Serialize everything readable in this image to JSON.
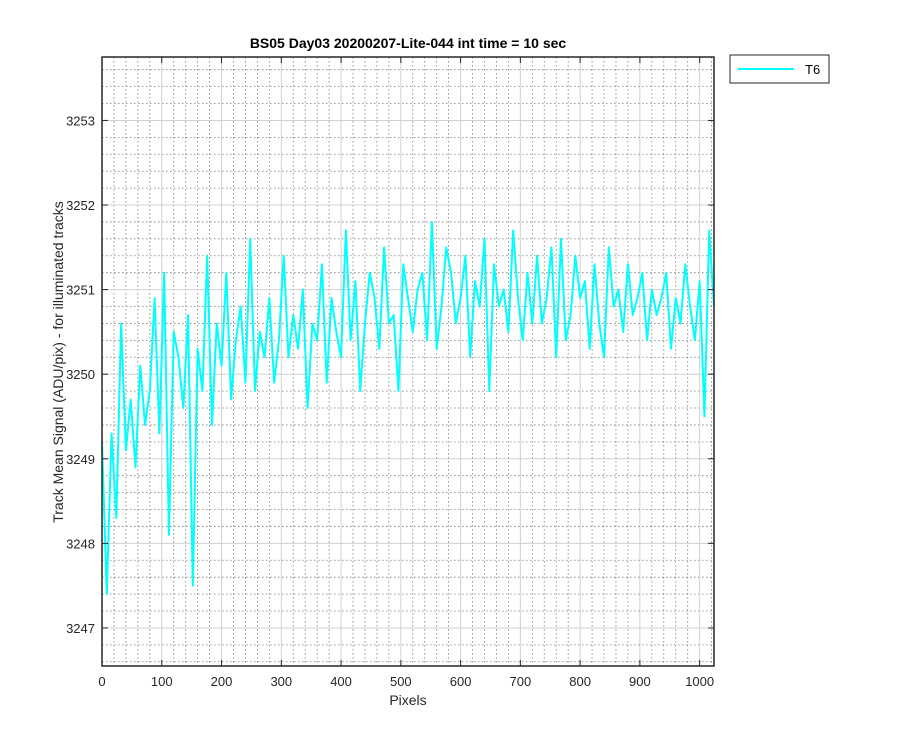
{
  "chart_data": {
    "type": "line",
    "title": "BS05 Day03 20200207-Lite-044 int time = 10 sec",
    "xlabel": "Pixels",
    "ylabel": "Track Mean Signal (ADU/pix) - for illuminated tracks",
    "xlim": [
      0,
      1024
    ],
    "ylim": [
      3246.55,
      3253.75
    ],
    "x_ticks": [
      0,
      100,
      200,
      300,
      400,
      500,
      600,
      700,
      800,
      900,
      1000
    ],
    "y_ticks": [
      3247,
      3248,
      3249,
      3250,
      3251,
      3252,
      3253
    ],
    "grid": "major and minor",
    "legend_position": "outside top-right",
    "series": [
      {
        "name": "T6",
        "color": "#00FFFF",
        "x_start": 0,
        "x_step": 8,
        "values": [
          3249.2,
          3247.4,
          3249.3,
          3248.3,
          3250.6,
          3249.1,
          3249.7,
          3248.9,
          3250.1,
          3249.4,
          3249.8,
          3250.9,
          3249.3,
          3251.2,
          3248.1,
          3250.5,
          3250.2,
          3249.6,
          3250.7,
          3247.5,
          3250.3,
          3249.8,
          3251.4,
          3249.4,
          3250.6,
          3250.1,
          3251.2,
          3249.7,
          3250.4,
          3250.8,
          3249.9,
          3251.6,
          3249.8,
          3250.5,
          3250.2,
          3250.9,
          3249.9,
          3250.4,
          3251.4,
          3250.2,
          3250.7,
          3250.3,
          3251.0,
          3249.6,
          3250.6,
          3250.4,
          3251.3,
          3249.9,
          3250.9,
          3250.5,
          3250.2,
          3251.7,
          3250.4,
          3251.1,
          3249.8,
          3250.6,
          3251.2,
          3250.9,
          3250.3,
          3251.5,
          3250.6,
          3250.7,
          3249.8,
          3251.3,
          3250.9,
          3250.5,
          3251.0,
          3251.2,
          3250.4,
          3251.8,
          3250.3,
          3250.8,
          3251.5,
          3251.2,
          3250.6,
          3250.9,
          3251.4,
          3250.2,
          3251.1,
          3250.8,
          3251.6,
          3249.8,
          3251.3,
          3250.8,
          3251.0,
          3250.5,
          3251.7,
          3250.9,
          3250.4,
          3251.2,
          3250.6,
          3251.4,
          3250.6,
          3250.9,
          3251.5,
          3250.2,
          3251.6,
          3250.4,
          3250.7,
          3251.4,
          3250.9,
          3251.1,
          3250.3,
          3251.3,
          3250.6,
          3250.2,
          3251.5,
          3250.8,
          3251.0,
          3250.5,
          3251.3,
          3250.7,
          3250.9,
          3251.2,
          3250.4,
          3251.0,
          3250.7,
          3250.9,
          3251.2,
          3250.3,
          3250.9,
          3250.6,
          3251.3,
          3250.8,
          3250.4,
          3251.1,
          3249.5,
          3251.7,
          3250.8
        ]
      }
    ]
  }
}
